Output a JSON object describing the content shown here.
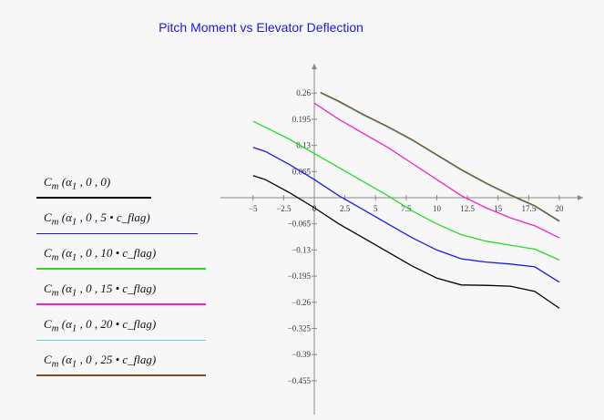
{
  "chart_data": {
    "type": "line",
    "title": "Pitch Moment vs Elevator Deflection",
    "xlabel": "",
    "ylabel": "",
    "xlim": [
      -6,
      21
    ],
    "ylim": [
      -0.5,
      0.33
    ],
    "x_ticks": [
      -5,
      -2.5,
      0,
      2.5,
      5,
      7.5,
      10,
      12.5,
      15,
      17.5,
      20
    ],
    "x_tick_labels": [
      "−5",
      "−2.5",
      "0",
      "2.5",
      "5",
      "7.5",
      "10",
      "12.5",
      "15",
      "17.5",
      "20"
    ],
    "y_ticks": [
      0.26,
      0.195,
      0.13,
      0.065,
      -0.065,
      -0.13,
      -0.195,
      -0.26,
      -0.325,
      -0.39,
      -0.455
    ],
    "y_tick_labels": [
      "0.26",
      "0.195",
      "0.13",
      "0.065",
      "−0.065",
      "−0.13",
      "−0.195",
      "−0.26",
      "−0.325",
      "−0.39",
      "−0.455"
    ],
    "series": [
      {
        "name": "C_m(α_1, 0, 0)",
        "color": "#000000",
        "x": [
          -5,
          -4,
          -2,
          0,
          2,
          4,
          6,
          8,
          10,
          12,
          14,
          16,
          18,
          20
        ],
        "values": [
          0.055,
          0.045,
          0.012,
          -0.025,
          -0.065,
          -0.1,
          -0.135,
          -0.17,
          -0.2,
          -0.217,
          -0.218,
          -0.22,
          -0.233,
          -0.275
        ]
      },
      {
        "name": "C_m(α_1, 0, 5·c_flag)",
        "color": "#1a1ae8",
        "x": [
          -5,
          -4,
          -2,
          0,
          2,
          4,
          6,
          8,
          10,
          12,
          14,
          16,
          18,
          20
        ],
        "values": [
          0.125,
          0.115,
          0.082,
          0.045,
          0.005,
          -0.03,
          -0.065,
          -0.1,
          -0.13,
          -0.152,
          -0.16,
          -0.165,
          -0.172,
          -0.21
        ]
      },
      {
        "name": "C_m(α_1, 0, 10·c_flag)",
        "color": "#22dd22",
        "x": [
          -5,
          -4,
          -2,
          0,
          2,
          4,
          6,
          8,
          10,
          12,
          14,
          16,
          18,
          20
        ],
        "values": [
          0.19,
          0.175,
          0.145,
          0.11,
          0.075,
          0.04,
          0.005,
          -0.033,
          -0.065,
          -0.092,
          -0.108,
          -0.118,
          -0.128,
          -0.155
        ]
      },
      {
        "name": "C_m(α_1, 0, 15·c_flag)",
        "color": "#ee22cc",
        "x": [
          0,
          2,
          4,
          6,
          8,
          10,
          12,
          14,
          16,
          18,
          20
        ],
        "values": [
          0.235,
          0.195,
          0.16,
          0.125,
          0.085,
          0.045,
          0.005,
          -0.025,
          -0.05,
          -0.07,
          -0.1
        ]
      },
      {
        "name": "C_m(α_1, 0, 20·c_flag)",
        "color": "#5dd0d8",
        "x": [
          0.5,
          2,
          4,
          6,
          8,
          10,
          12,
          14,
          16,
          18,
          20
        ],
        "values": [
          0.26,
          0.238,
          0.205,
          0.175,
          0.142,
          0.105,
          0.068,
          0.035,
          0.005,
          -0.022,
          -0.06
        ]
      },
      {
        "name": "C_m(α_1, 0, 25·c_flag)",
        "color": "#8b4a1a",
        "x": [
          0.5,
          2,
          4,
          6,
          8,
          10,
          12,
          14,
          16,
          18,
          20
        ],
        "values": [
          0.262,
          0.24,
          0.207,
          0.177,
          0.144,
          0.107,
          0.07,
          0.037,
          0.007,
          -0.02,
          -0.058
        ]
      }
    ]
  },
  "legend": [
    {
      "func": "C",
      "sub": "m",
      "args": "(α",
      "arg_sub": "1",
      "rest": ", 0 , 0)",
      "color": "#000000"
    },
    {
      "func": "C",
      "sub": "m",
      "args": "(α",
      "arg_sub": "1",
      "rest": ", 0 , 5 • c_flag)",
      "color": "#1a1ae8"
    },
    {
      "func": "C",
      "sub": "m",
      "args": "(α",
      "arg_sub": "1",
      "rest": ", 0 , 10 • c_flag)",
      "color": "#22dd22"
    },
    {
      "func": "C",
      "sub": "m",
      "args": "(α",
      "arg_sub": "1",
      "rest": ", 0 , 15 • c_flag)",
      "color": "#ee22cc"
    },
    {
      "func": "C",
      "sub": "m",
      "args": "(α",
      "arg_sub": "1",
      "rest": ", 0 , 20 • c_flag)",
      "color": "#5dd0d8"
    },
    {
      "func": "C",
      "sub": "m",
      "args": "(α",
      "arg_sub": "1",
      "rest": ", 0 , 25 • c_flag)",
      "color": "#8b4a1a"
    }
  ]
}
